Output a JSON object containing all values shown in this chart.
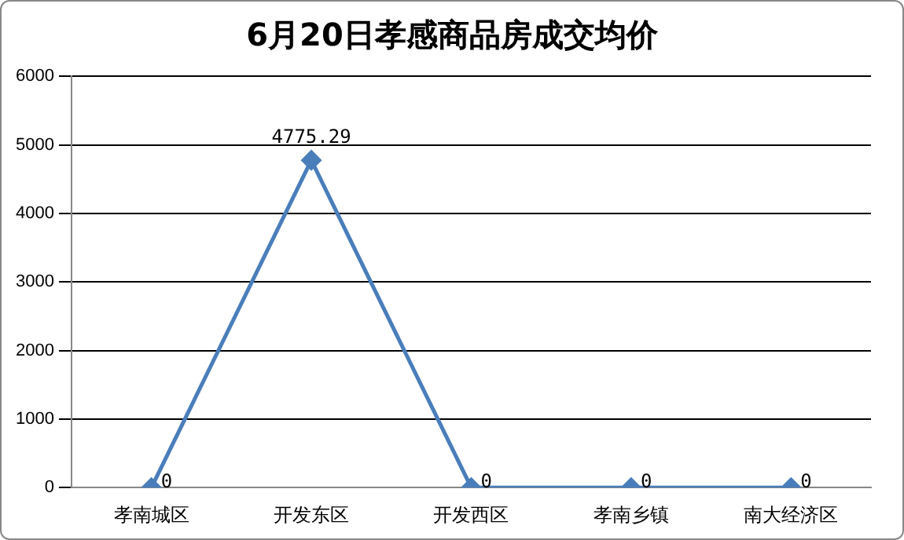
{
  "chart_data": {
    "type": "line",
    "title": "6月20日孝感商品房成交均价",
    "categories": [
      "孝南城区",
      "开发东区",
      "开发西区",
      "孝南乡镇",
      "南大经济区"
    ],
    "series": [
      {
        "color": "#4a7ebb",
        "values": [
          0,
          4775.29,
          0,
          0,
          0
        ]
      }
    ],
    "ylim": [
      0,
      6000
    ],
    "yticks": [
      0,
      1000,
      2000,
      3000,
      4000,
      5000,
      6000
    ],
    "grid": "y",
    "legend": false,
    "marker": "diamond",
    "line_style": "solid",
    "data_labels": true
  }
}
